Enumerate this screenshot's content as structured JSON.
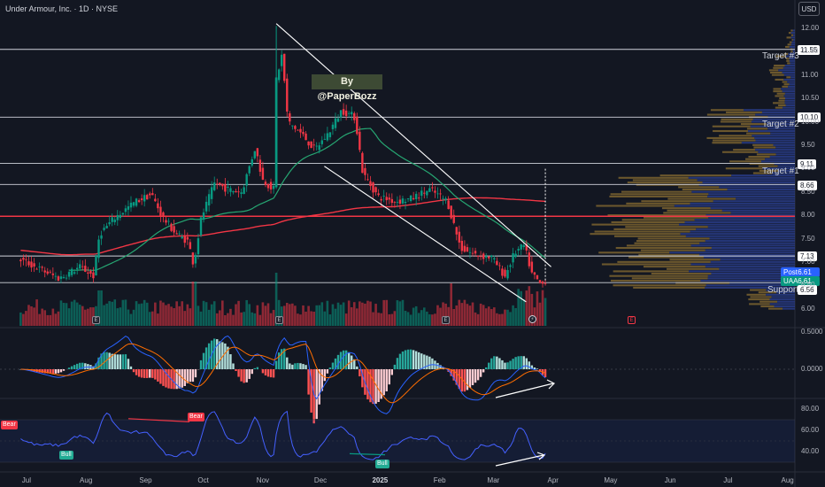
{
  "window": {
    "symbol_title": "Under Armour, Inc. · 1D · NYSE",
    "currency": "USD",
    "watermark": "By @PaperBozz"
  },
  "colors": {
    "background": "#131722",
    "candle_up": "#089981",
    "candle_down": "#f23645",
    "ma_short": "#26a672",
    "ma_long": "#f23645",
    "channel": "#ffffff",
    "macd_line": "#2962ff",
    "signal_line": "#ff6d00",
    "rsi_line": "#4460ff",
    "volume_profile_up": "#2a3f8f",
    "volume_profile_down": "#8a6d32"
  },
  "levels": [
    {
      "price": 11.55,
      "label": "Target #3",
      "tag": "11.55",
      "color": "#d1d4dc"
    },
    {
      "price": 10.1,
      "label": "Target #2",
      "tag": "10.10",
      "color": "#d1d4dc"
    },
    {
      "price": 9.11,
      "label": "Target #1",
      "tag": "9.11",
      "color": "#d1d4dc"
    },
    {
      "price": 8.66,
      "label": "",
      "tag": "8.66",
      "color": "#d1d4dc"
    },
    {
      "price": 7.98,
      "label": "",
      "tag": "",
      "color": "#f23645"
    },
    {
      "price": 7.13,
      "label": "",
      "tag": "7.13",
      "color": "#d1d4dc"
    },
    {
      "price": 6.56,
      "label": "Support",
      "tag": "6.56",
      "color": "#d1d4dc"
    }
  ],
  "price_tags": {
    "post": {
      "label": "Post",
      "value": "6.61"
    },
    "last": {
      "label": "UAA",
      "value": "6.61"
    }
  },
  "chart_data": [
    {
      "type": "candlestick",
      "title": "Under Armour, Inc. · 1D · NYSE",
      "ylim": [
        5.7,
        12.3
      ],
      "y_ticks": [
        "12.00",
        "11.50",
        "11.00",
        "10.50",
        "10.00",
        "9.50",
        "9.00",
        "8.50",
        "8.00",
        "7.50",
        "7.00",
        "6.50",
        "6.00"
      ],
      "x_ticks": [
        "Jul",
        "Aug",
        "Sep",
        "Oct",
        "Nov",
        "Dec",
        "2025",
        "Feb",
        "Mar",
        "Apr",
        "May",
        "Jun",
        "Jul",
        "Aug"
      ],
      "price_path": [
        [
          "2024-06-28",
          7.05
        ],
        [
          "2024-07-08",
          6.85
        ],
        [
          "2024-07-18",
          6.65
        ],
        [
          "2024-07-29",
          6.9
        ],
        [
          "2024-08-05",
          6.7
        ],
        [
          "2024-08-08",
          7.6
        ],
        [
          "2024-08-16",
          7.95
        ],
        [
          "2024-08-27",
          8.3
        ],
        [
          "2024-09-04",
          8.45
        ],
        [
          "2024-09-10",
          7.95
        ],
        [
          "2024-09-17",
          7.6
        ],
        [
          "2024-09-23",
          7.45
        ],
        [
          "2024-09-26",
          6.95
        ],
        [
          "2024-09-30",
          7.95
        ],
        [
          "2024-10-07",
          8.7
        ],
        [
          "2024-10-14",
          8.55
        ],
        [
          "2024-10-21",
          8.5
        ],
        [
          "2024-10-28",
          9.45
        ],
        [
          "2024-11-01",
          8.75
        ],
        [
          "2024-11-07",
          8.55
        ],
        [
          "2024-11-08",
          10.9
        ],
        [
          "2024-11-11",
          11.45
        ],
        [
          "2024-11-14",
          10.0
        ],
        [
          "2024-11-21",
          9.75
        ],
        [
          "2024-11-28",
          9.4
        ],
        [
          "2024-12-05",
          9.75
        ],
        [
          "2024-12-12",
          10.25
        ],
        [
          "2024-12-19",
          10.1
        ],
        [
          "2024-12-23",
          8.9
        ],
        [
          "2024-12-31",
          8.4
        ],
        [
          "2025-01-09",
          8.3
        ],
        [
          "2025-01-17",
          8.35
        ],
        [
          "2025-01-27",
          8.55
        ],
        [
          "2025-02-05",
          8.3
        ],
        [
          "2025-02-07",
          8.0
        ],
        [
          "2025-02-12",
          7.3
        ],
        [
          "2025-02-20",
          7.15
        ],
        [
          "2025-02-28",
          7.1
        ],
        [
          "2025-03-07",
          6.7
        ],
        [
          "2025-03-12",
          7.2
        ],
        [
          "2025-03-17",
          7.35
        ],
        [
          "2025-03-21",
          6.75
        ],
        [
          "2025-03-26",
          6.5
        ],
        [
          "2025-03-28",
          6.61
        ]
      ],
      "annotations": [
        {
          "type": "channel-upper",
          "from": [
            "2024-11-08",
            12.1
          ],
          "to": [
            "2025-03-31",
            6.9
          ]
        },
        {
          "type": "channel-lower",
          "from": [
            "2024-12-03",
            9.05
          ],
          "to": [
            "2025-03-18",
            6.15
          ]
        },
        {
          "type": "projection",
          "x": "2025-03-28",
          "from": 6.61,
          "to": 9.0
        }
      ]
    },
    {
      "type": "histogram",
      "name": "MACD",
      "y_ticks": [
        "0.5000",
        "0.0000"
      ],
      "ylim": [
        -0.75,
        0.6
      ]
    },
    {
      "type": "line",
      "name": "RSI",
      "y_ticks": [
        "80.00",
        "60.00",
        "40.00"
      ],
      "ylim": [
        28,
        88
      ],
      "signals": [
        {
          "label": "Bear",
          "date": "2024-06-28",
          "value": 68
        },
        {
          "label": "Bull",
          "date": "2024-08-03",
          "value": 38
        },
        {
          "label": "Bear",
          "date": "2024-10-07",
          "value": 70
        },
        {
          "label": "Bull",
          "date": "2024-12-26",
          "value": 34
        }
      ]
    }
  ]
}
